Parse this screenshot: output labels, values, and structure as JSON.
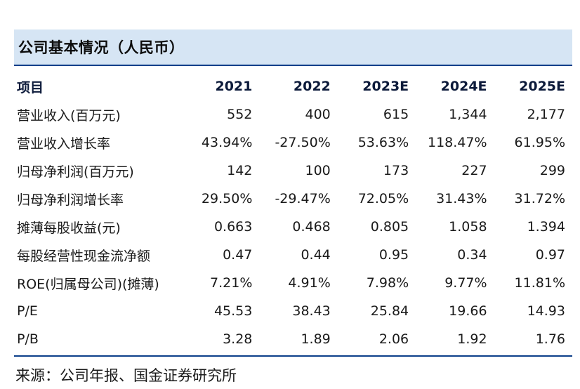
{
  "title": "公司基本情况（人民币）",
  "headers": [
    "项目",
    "2021",
    "2022",
    "2023E",
    "2024E",
    "2025E"
  ],
  "rows": [
    {
      "label": "营业收入(百万元)",
      "values": [
        "552",
        "400",
        "615",
        "1,344",
        "2,177"
      ]
    },
    {
      "label": "营业收入增长率",
      "values": [
        "43.94%",
        "-27.50%",
        "53.63%",
        "118.47%",
        "61.95%"
      ]
    },
    {
      "label": "归母净利润(百万元)",
      "values": [
        "142",
        "100",
        "173",
        "227",
        "299"
      ]
    },
    {
      "label": "归母净利润增长率",
      "values": [
        "29.50%",
        "-29.47%",
        "72.05%",
        "31.43%",
        "31.72%"
      ]
    },
    {
      "label": "摊薄每股收益(元)",
      "values": [
        "0.663",
        "0.468",
        "0.805",
        "1.058",
        "1.394"
      ]
    },
    {
      "label": "每股经营性现金流净额",
      "values": [
        "0.47",
        "0.44",
        "0.95",
        "0.34",
        "0.97"
      ]
    },
    {
      "label": "ROE(归属母公司)(摊薄)",
      "values": [
        "7.21%",
        "4.91%",
        "7.98%",
        "9.77%",
        "11.81%"
      ]
    },
    {
      "label": "P/E",
      "values": [
        "45.53",
        "38.43",
        "25.84",
        "19.66",
        "14.93"
      ]
    },
    {
      "label": "P/B",
      "values": [
        "3.28",
        "1.89",
        "2.06",
        "1.92",
        "1.76"
      ]
    }
  ],
  "source": "来源：公司年报、国金证券研究所",
  "colors": {
    "title_background": "#d6e5f4",
    "rule": "#0d3f8a"
  }
}
